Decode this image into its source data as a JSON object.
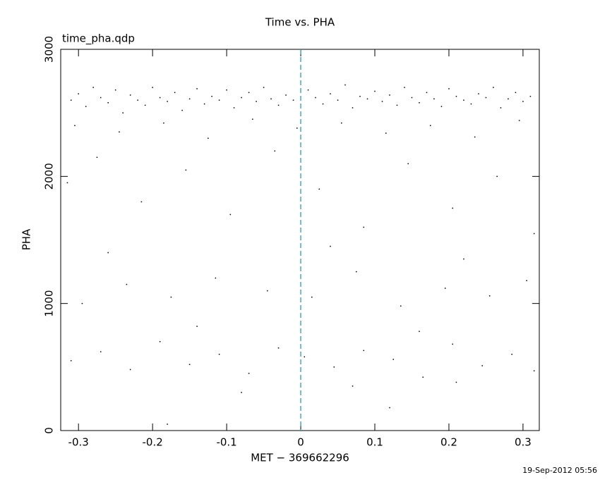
{
  "chart_data": {
    "type": "scatter",
    "title": "Time vs. PHA",
    "annotation": "time_pha.qdp",
    "x_label": "MET − 369662296",
    "y_label": "PHA",
    "footer": "19-Sep-2012 05:56",
    "xlim": [
      -0.324,
      0.322
    ],
    "ylim": [
      0,
      3000
    ],
    "xticks": [
      -0.3,
      -0.2,
      -0.1,
      0,
      0.1,
      0.2,
      0.3
    ],
    "yticks": [
      0,
      1000,
      2000,
      3000
    ],
    "reference_line_x": 0,
    "reference_line_color": "#2a9fb0",
    "color": "#000000",
    "x": [
      -0.31,
      -0.3,
      -0.29,
      -0.28,
      -0.27,
      -0.26,
      -0.25,
      -0.24,
      -0.23,
      -0.22,
      -0.21,
      -0.2,
      -0.19,
      -0.18,
      -0.17,
      -0.16,
      -0.15,
      -0.14,
      -0.13,
      -0.12,
      -0.11,
      -0.1,
      -0.09,
      -0.08,
      -0.07,
      -0.06,
      -0.05,
      -0.04,
      -0.03,
      -0.02,
      -0.01,
      0.01,
      0.02,
      0.03,
      0.04,
      0.05,
      0.06,
      0.07,
      0.08,
      0.09,
      0.1,
      0.11,
      0.12,
      0.13,
      0.14,
      0.15,
      0.16,
      0.17,
      0.18,
      0.19,
      0.2,
      0.21,
      0.22,
      0.23,
      0.24,
      0.25,
      0.26,
      0.27,
      0.28,
      0.29,
      0.3,
      0.31,
      -0.305,
      -0.245,
      -0.185,
      -0.125,
      -0.065,
      -0.005,
      0.055,
      0.115,
      0.175,
      0.235,
      0.295,
      -0.315,
      -0.275,
      -0.215,
      -0.155,
      -0.095,
      -0.035,
      0.025,
      0.085,
      0.145,
      0.205,
      0.265,
      0.315,
      -0.295,
      -0.235,
      -0.175,
      -0.115,
      -0.045,
      0.015,
      0.075,
      0.135,
      0.195,
      0.255,
      0.305,
      -0.26,
      0.04,
      0.22,
      -0.14,
      0.16,
      -0.31,
      -0.27,
      -0.23,
      -0.19,
      -0.15,
      -0.11,
      -0.07,
      -0.03,
      0.005,
      0.045,
      0.085,
      0.125,
      0.165,
      0.205,
      0.245,
      0.285,
      0.315,
      -0.08,
      0.07,
      0.21,
      -0.18,
      0.12
    ],
    "values": [
      2600,
      2650,
      2550,
      2700,
      2620,
      2580,
      2680,
      2500,
      2640,
      2600,
      2560,
      2700,
      2620,
      2590,
      2660,
      2520,
      2610,
      2690,
      2570,
      2630,
      2600,
      2680,
      2540,
      2620,
      2660,
      2590,
      2700,
      2610,
      2560,
      2640,
      2600,
      2680,
      2620,
      2570,
      2650,
      2600,
      2720,
      2540,
      2630,
      2610,
      2670,
      2590,
      2640,
      2560,
      2700,
      2620,
      2580,
      2660,
      2610,
      2550,
      2690,
      2630,
      2600,
      2570,
      2650,
      2620,
      2700,
      2540,
      2610,
      2660,
      2590,
      2630,
      2400,
      2350,
      2420,
      2300,
      2450,
      2380,
      2420,
      2340,
      2400,
      2310,
      2440,
      1950,
      2150,
      1800,
      2050,
      1700,
      2200,
      1900,
      1600,
      2100,
      1750,
      2000,
      1550,
      1000,
      1150,
      1050,
      1200,
      1100,
      1050,
      1250,
      980,
      1120,
      1060,
      1180,
      1400,
      1450,
      1350,
      820,
      780,
      550,
      620,
      480,
      700,
      520,
      600,
      450,
      650,
      580,
      500,
      630,
      560,
      420,
      680,
      510,
      600,
      470,
      300,
      350,
      380,
      50,
      180
    ]
  }
}
